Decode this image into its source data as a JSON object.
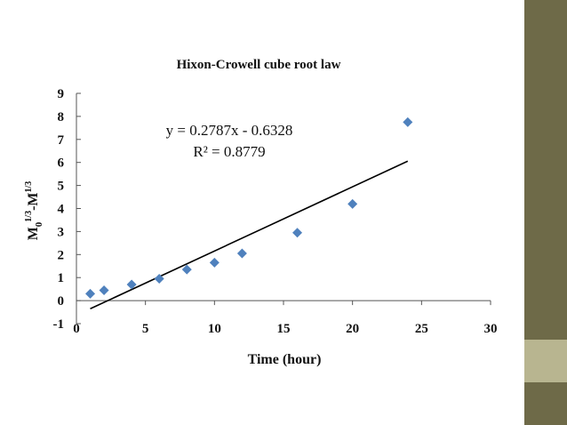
{
  "slide": {
    "sidebar_color": "#6e6a48",
    "accent_color": "#b8b590"
  },
  "chart_data": {
    "type": "scatter",
    "title": "Hixon-Crowell cube root law",
    "xlabel": "Time (hour)",
    "ylabel": {
      "text": "M",
      "sub": "0",
      "sup": "1/3",
      "text2": "-M",
      "sup2": "1/3"
    },
    "xlim": [
      0,
      30
    ],
    "ylim": [
      -1,
      9
    ],
    "x_ticks": [
      0,
      5,
      10,
      15,
      20,
      25,
      30
    ],
    "y_ticks": [
      -1,
      0,
      1,
      2,
      3,
      4,
      5,
      6,
      7,
      8,
      9
    ],
    "grid": false,
    "marker": "diamond",
    "marker_color": "#4f81bd",
    "series": [
      {
        "x": [
          1,
          2,
          4,
          6,
          8,
          10,
          12,
          16,
          20,
          24
        ],
        "y": [
          0.3,
          0.45,
          0.7,
          0.95,
          1.35,
          1.65,
          2.05,
          2.95,
          4.2,
          7.75
        ]
      }
    ],
    "trendline": {
      "slope": 0.2787,
      "intercept": -0.6328,
      "x_range": [
        1,
        24
      ],
      "color": "#000000"
    },
    "annotations": {
      "equation": "y = 0.2787x - 0.6328",
      "r2_label": "R² = 0.8779"
    }
  }
}
